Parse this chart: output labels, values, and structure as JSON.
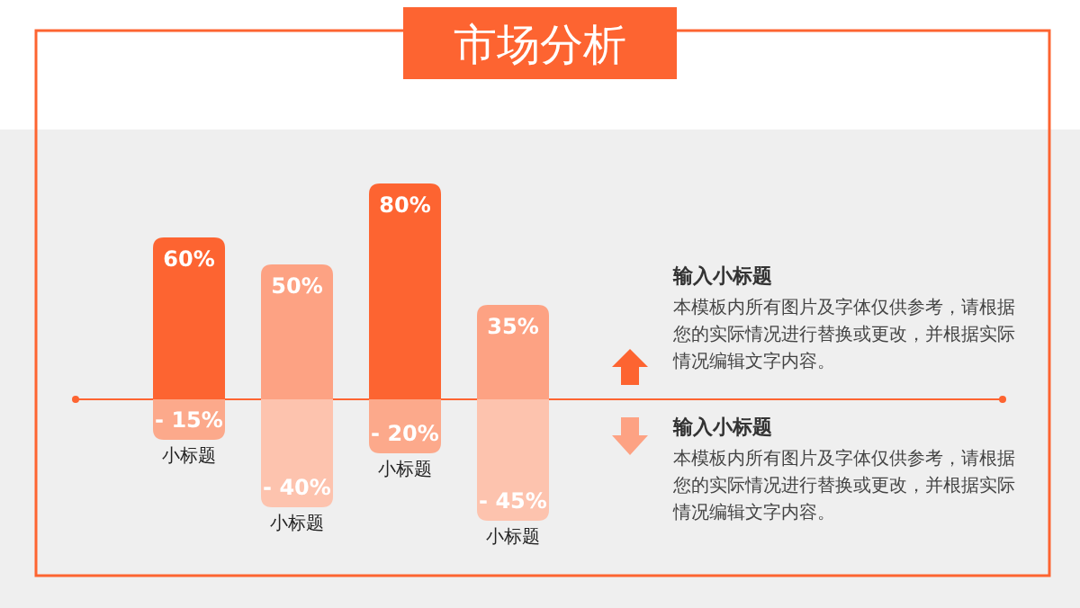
{
  "chart_data": {
    "type": "bar",
    "title": "市场分析",
    "stacked": true,
    "ref_lines": [
      {
        "axis": "y",
        "value": 0,
        "color": "#fd6431"
      }
    ],
    "categories": [
      "小标题",
      "小标题",
      "小标题",
      "小标题"
    ],
    "series": [
      {
        "colors": [
          "#fd6431",
          "#fda283",
          "#fd6431",
          "#fda283"
        ],
        "values": [
          60,
          50,
          80,
          35
        ],
        "value_labels": [
          "60%",
          "50%",
          "80%",
          "35%"
        ]
      },
      {
        "colors": [
          "#fca98b",
          "#fdc3ae",
          "#fca98b",
          "#fdc3ae"
        ],
        "values": [
          -15,
          -40,
          -20,
          -45
        ],
        "value_labels": [
          "- 15%",
          "- 40%",
          "- 20%",
          "- 45%"
        ]
      }
    ],
    "annotations": [
      "输入小标题",
      "本模板内所有图片及字体仅供参考，请根据您的实际情况进行替换或更改，并根据实际情况编辑文字内容。",
      "输入小标题",
      "本模板内所有图片及字体仅供参考，请根据您的实际情况进行替换或更改，并根据实际情况编辑文字内容。"
    ]
  }
}
